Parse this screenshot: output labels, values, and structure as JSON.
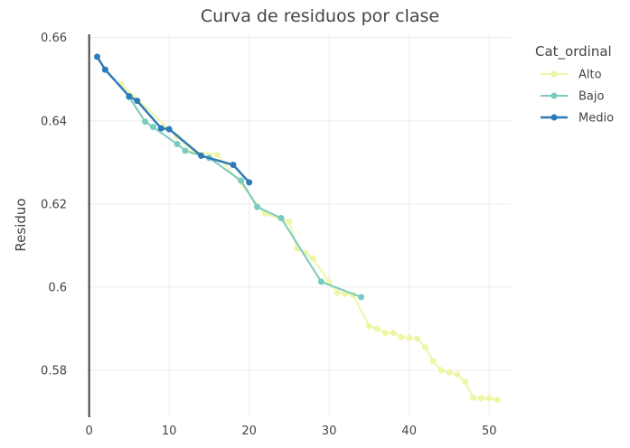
{
  "chart_data": {
    "type": "line",
    "title": "Curva de residuos por clase",
    "xlabel": "",
    "ylabel": "Residuo",
    "xlim": [
      -0.3,
      52.8
    ],
    "ylim": [
      0.5687,
      0.6608
    ],
    "x_ticks": [
      0,
      10,
      20,
      30,
      40,
      50
    ],
    "x_tick_labels": [
      "0",
      "10",
      "20",
      "30",
      "40",
      "50"
    ],
    "y_ticks": [
      0.58,
      0.6,
      0.62,
      0.64,
      0.66
    ],
    "y_tick_labels": [
      "0.58",
      "0.6",
      "0.62",
      "0.64",
      "0.66"
    ],
    "grid": true,
    "legend": {
      "title": "Cat_ordinal",
      "placement": "top-right"
    },
    "series": [
      {
        "name": "Alto",
        "color": "#eef6a6",
        "line_width": 2,
        "marker_radius": 3.5,
        "x": [
          4,
          11,
          13,
          16,
          22,
          25,
          26,
          27,
          28,
          30,
          31,
          32,
          33,
          35,
          36,
          37,
          38,
          39,
          40,
          41,
          42,
          43,
          44,
          45,
          46,
          47,
          48,
          49,
          50,
          51
        ],
        "y": [
          0.6488,
          0.6362,
          0.6326,
          0.6318,
          0.6177,
          0.6157,
          0.6093,
          0.6082,
          0.6069,
          0.6012,
          0.5987,
          0.5984,
          0.5981,
          0.5906,
          0.59,
          0.589,
          0.589,
          0.588,
          0.5878,
          0.5876,
          0.5855,
          0.5822,
          0.58,
          0.5795,
          0.579,
          0.5772,
          0.5734,
          0.5733,
          0.5733,
          0.5729
        ]
      },
      {
        "name": "Bajo",
        "color": "#79cbbd",
        "line_width": 2,
        "marker_radius": 3.5,
        "x": [
          5,
          7,
          8,
          11,
          12,
          15,
          19,
          21,
          24,
          29,
          34
        ],
        "y": [
          0.6457,
          0.6398,
          0.6385,
          0.6344,
          0.6328,
          0.6311,
          0.6256,
          0.6193,
          0.6166,
          0.6013,
          0.5976
        ]
      },
      {
        "name": "Medio",
        "color": "#2e7ab7",
        "line_width": 2.5,
        "marker_radius": 3.5,
        "x": [
          1,
          2,
          5,
          6,
          9,
          10,
          14,
          18,
          20
        ],
        "y": [
          0.6554,
          0.6523,
          0.6459,
          0.6448,
          0.6382,
          0.638,
          0.6316,
          0.6294,
          0.6252
        ]
      }
    ]
  }
}
